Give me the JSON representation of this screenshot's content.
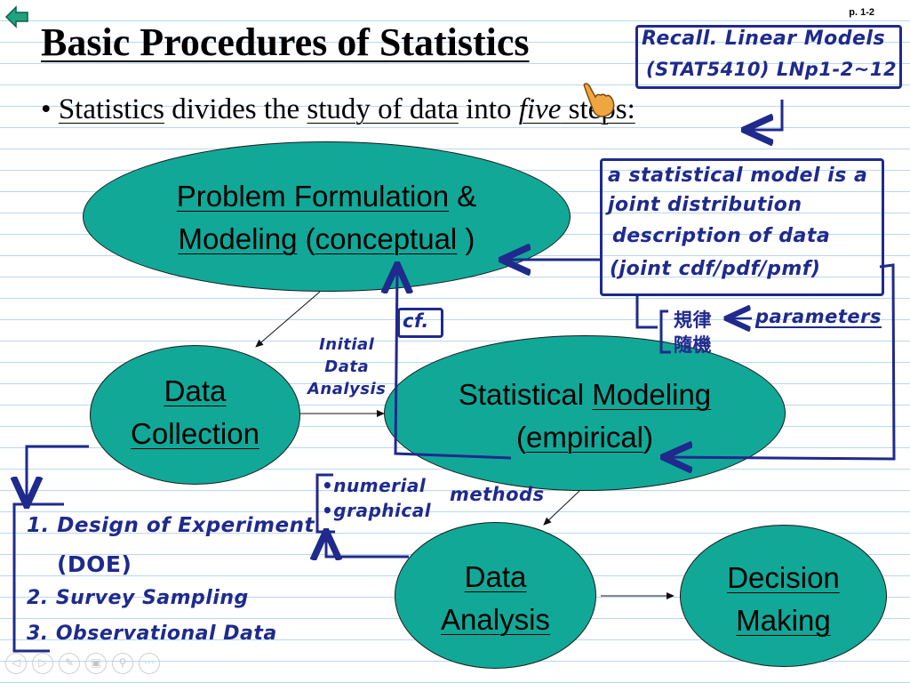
{
  "slide": {
    "title": "Basic Procedures of Statistics",
    "page_number": "p. 1-2",
    "bullet": {
      "marker": "•",
      "parts": [
        {
          "text": "Statistics",
          "style": "underline"
        },
        {
          "text": " divides the ",
          "style": "plain"
        },
        {
          "text": "study of data",
          "style": "underline"
        },
        {
          "text": " into ",
          "style": "plain"
        },
        {
          "text": "five",
          "style": "italic-underline"
        },
        {
          "text": " steps:",
          "style": "underline"
        }
      ]
    }
  },
  "nodes": {
    "problem": {
      "line1_a": "Problem Formulation",
      "line1_b": " &",
      "line2_a": "Modeling",
      "line2_b": " (",
      "line2_c": "conceptual",
      "line2_d": " )"
    },
    "collection": {
      "line1": "Data",
      "line2": "Collection"
    },
    "modeling": {
      "line1_a": "Statistical ",
      "line1_b": "Modeling",
      "line2_a": "(",
      "line2_b": "empirical",
      "line2_c": ")"
    },
    "analysis": {
      "line1": "Data",
      "line2": "Analysis"
    },
    "decision": {
      "line1": "Decision",
      "line2": "Making"
    }
  },
  "annotations": {
    "recall_line1": "Recall. Linear Models",
    "recall_line2": "(STAT5410) LNp1-2~12",
    "model_def": [
      "a statistical model is a",
      "joint distribution",
      "description of data",
      "(joint cdf/pdf/pmf)"
    ],
    "cf": "cf.",
    "chinese_1": "規律",
    "chinese_2": "隨機",
    "parameters": "parameters",
    "initial": [
      "Initial",
      "Data",
      "Analysis"
    ],
    "methods_items": [
      "•numerial",
      "•graphical"
    ],
    "methods": "methods",
    "collection_list": [
      "1. Design of Experiment",
      "(DOE)",
      "2. Survey Sampling",
      "3. Observational Data"
    ]
  },
  "nav": {
    "back_icon": "back-arrow-icon",
    "buttons": [
      "◁",
      "▷",
      "✎",
      "▣",
      "⚲",
      "⋯"
    ]
  },
  "colors": {
    "node_fill": "#11a898",
    "ink": "#1f2a8c",
    "back_arrow": "#1fa37f",
    "ruled_line": "#b9d8ee"
  }
}
